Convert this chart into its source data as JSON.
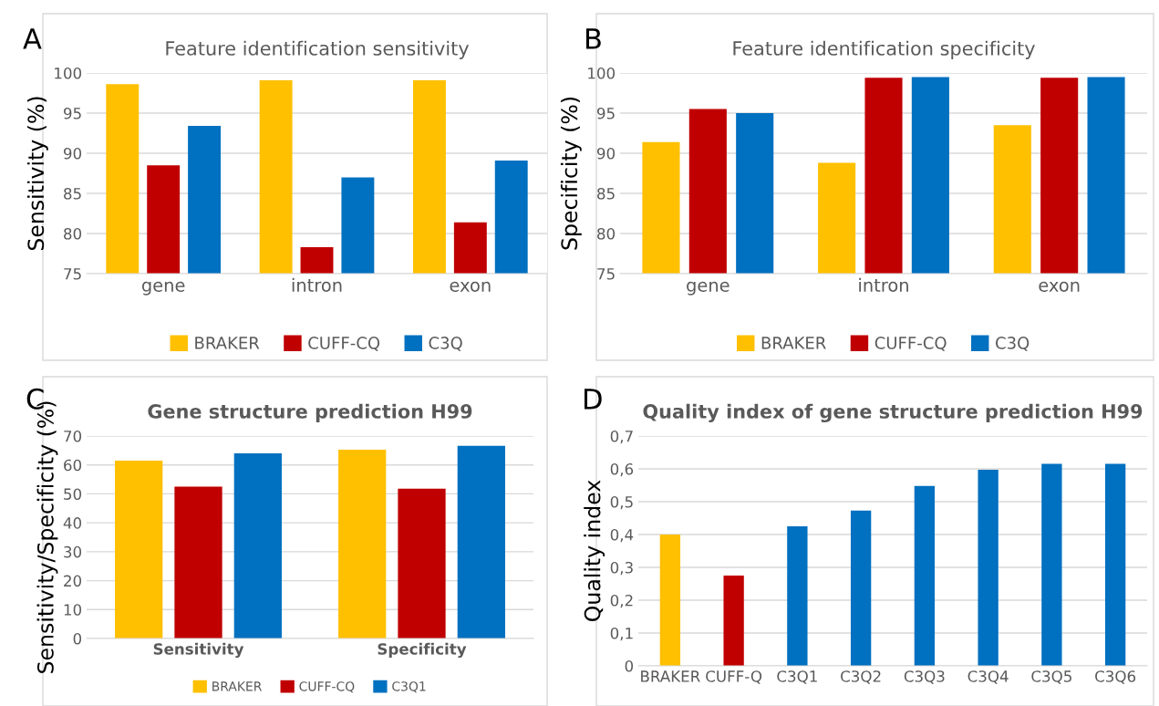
{
  "chart_data": [
    {
      "type": "bar",
      "title": "Feature identification sensitivity",
      "ylabel": "Sensitivity (%)",
      "annotations": [
        "A"
      ],
      "categories": [
        "gene",
        "intron",
        "exon"
      ],
      "series": [
        {
          "name": "BRAKER",
          "color": "#ffc000",
          "values": [
            98.6,
            99.1,
            99.1
          ]
        },
        {
          "name": "CUFF-CQ",
          "color": "#c00000",
          "values": [
            88.5,
            78.3,
            81.4
          ]
        },
        {
          "name": "C3Q",
          "color": "#0070c0",
          "values": [
            93.4,
            87.0,
            89.1
          ]
        }
      ],
      "ylim": [
        75,
        100
      ],
      "yticks": [
        75,
        80,
        85,
        90,
        95,
        100
      ],
      "grid": "y",
      "legend": "bottom"
    },
    {
      "type": "bar",
      "title": "Feature identification specificity",
      "ylabel": "Specificity (%)",
      "annotations": [
        "B"
      ],
      "categories": [
        "gene",
        "intron",
        "exon"
      ],
      "series": [
        {
          "name": "BRAKER",
          "color": "#ffc000",
          "values": [
            91.4,
            88.8,
            93.5
          ]
        },
        {
          "name": "CUFF-CQ",
          "color": "#c00000",
          "values": [
            95.5,
            99.4,
            99.4
          ]
        },
        {
          "name": "C3Q",
          "color": "#0070c0",
          "values": [
            95.0,
            99.5,
            99.5
          ]
        }
      ],
      "ylim": [
        75,
        100
      ],
      "yticks": [
        75,
        80,
        85,
        90,
        95,
        100
      ],
      "grid": "y",
      "legend": "bottom"
    },
    {
      "type": "bar",
      "title": "Gene structure prediction H99",
      "ylabel": "Sensitivity/Specificity (%)",
      "annotations": [
        "C"
      ],
      "categories": [
        "Sensitivity",
        "Specificity"
      ],
      "series": [
        {
          "name": "BRAKER",
          "color": "#ffc000",
          "values": [
            61.5,
            65.3
          ]
        },
        {
          "name": "CUFF-CQ",
          "color": "#c00000",
          "values": [
            52.5,
            51.8
          ]
        },
        {
          "name": "C3Q1",
          "color": "#0070c0",
          "values": [
            64.0,
            66.6
          ]
        }
      ],
      "ylim": [
        0,
        70
      ],
      "yticks": [
        0,
        10,
        20,
        30,
        40,
        50,
        60,
        70
      ],
      "grid": "y",
      "legend": "bottom"
    },
    {
      "type": "bar",
      "title": "Quality index of gene structure prediction H99",
      "ylabel": "Quality index",
      "annotations": [
        "D"
      ],
      "categories": [
        "BRAKER",
        "CUFF-Q",
        "C3Q1",
        "C3Q2",
        "C3Q3",
        "C3Q4",
        "C3Q5",
        "C3Q6"
      ],
      "values": [
        0.4,
        0.275,
        0.425,
        0.473,
        0.548,
        0.597,
        0.615,
        0.615
      ],
      "colors": [
        "#ffc000",
        "#c00000",
        "#0070c0",
        "#0070c0",
        "#0070c0",
        "#0070c0",
        "#0070c0",
        "#0070c0"
      ],
      "ylim": [
        0,
        0.7
      ],
      "yticks": [
        {
          "value": 0,
          "label": "0"
        },
        {
          "value": 0.1,
          "label": "0,1"
        },
        {
          "value": 0.2,
          "label": "0,2"
        },
        {
          "value": 0.3,
          "label": "0,3"
        },
        {
          "value": 0.4,
          "label": "0,4"
        },
        {
          "value": 0.5,
          "label": "0,5"
        },
        {
          "value": 0.6,
          "label": "0,6"
        },
        {
          "value": 0.7,
          "label": "0,7"
        }
      ],
      "grid": "y"
    }
  ]
}
